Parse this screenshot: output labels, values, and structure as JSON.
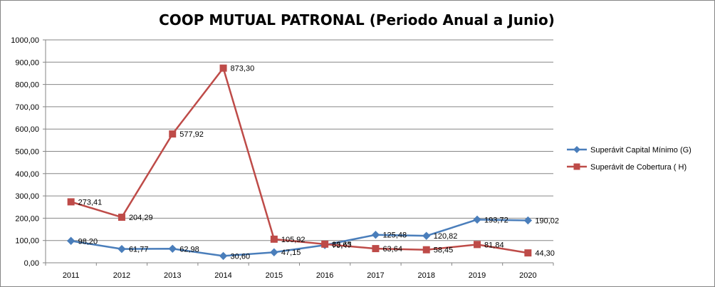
{
  "chart_data": {
    "type": "line",
    "title": "COOP MUTUAL PATRONAL (Periodo Anual a Junio)",
    "xlabel": "",
    "ylabel": "",
    "categories": [
      "2011",
      "2012",
      "2013",
      "2014",
      "2015",
      "2016",
      "2017",
      "2018",
      "2019",
      "2020"
    ],
    "ylim": [
      0,
      1000
    ],
    "yticks": [
      "0,00",
      "100,00",
      "200,00",
      "300,00",
      "400,00",
      "500,00",
      "600,00",
      "700,00",
      "800,00",
      "900,00",
      "1000,00"
    ],
    "grid": true,
    "legend_position": "right",
    "series": [
      {
        "name": "Superávit Capital Mínimo  (G)",
        "color": "#4A7EBB",
        "marker": "diamond",
        "values": [
          98.2,
          61.77,
          62.98,
          30.6,
          47.15,
          79.47,
          125.48,
          120.82,
          193.72,
          190.02
        ],
        "labels": [
          "98,20",
          "61,77",
          "62,98",
          "30,60",
          "47,15",
          "79,47",
          "125,48",
          "120,82",
          "193,72",
          "190,02"
        ]
      },
      {
        "name": "Superávit de Cobertura ( H)",
        "color": "#BE4B48",
        "marker": "square",
        "values": [
          273.41,
          204.29,
          577.92,
          873.3,
          105.92,
          83.65,
          63.64,
          58.45,
          81.84,
          44.3
        ],
        "labels": [
          "273,41",
          "204,29",
          "577,92",
          "873,30",
          "105,92",
          "83,65",
          "63,64",
          "58,45",
          "81,84",
          "44,30"
        ]
      }
    ]
  }
}
